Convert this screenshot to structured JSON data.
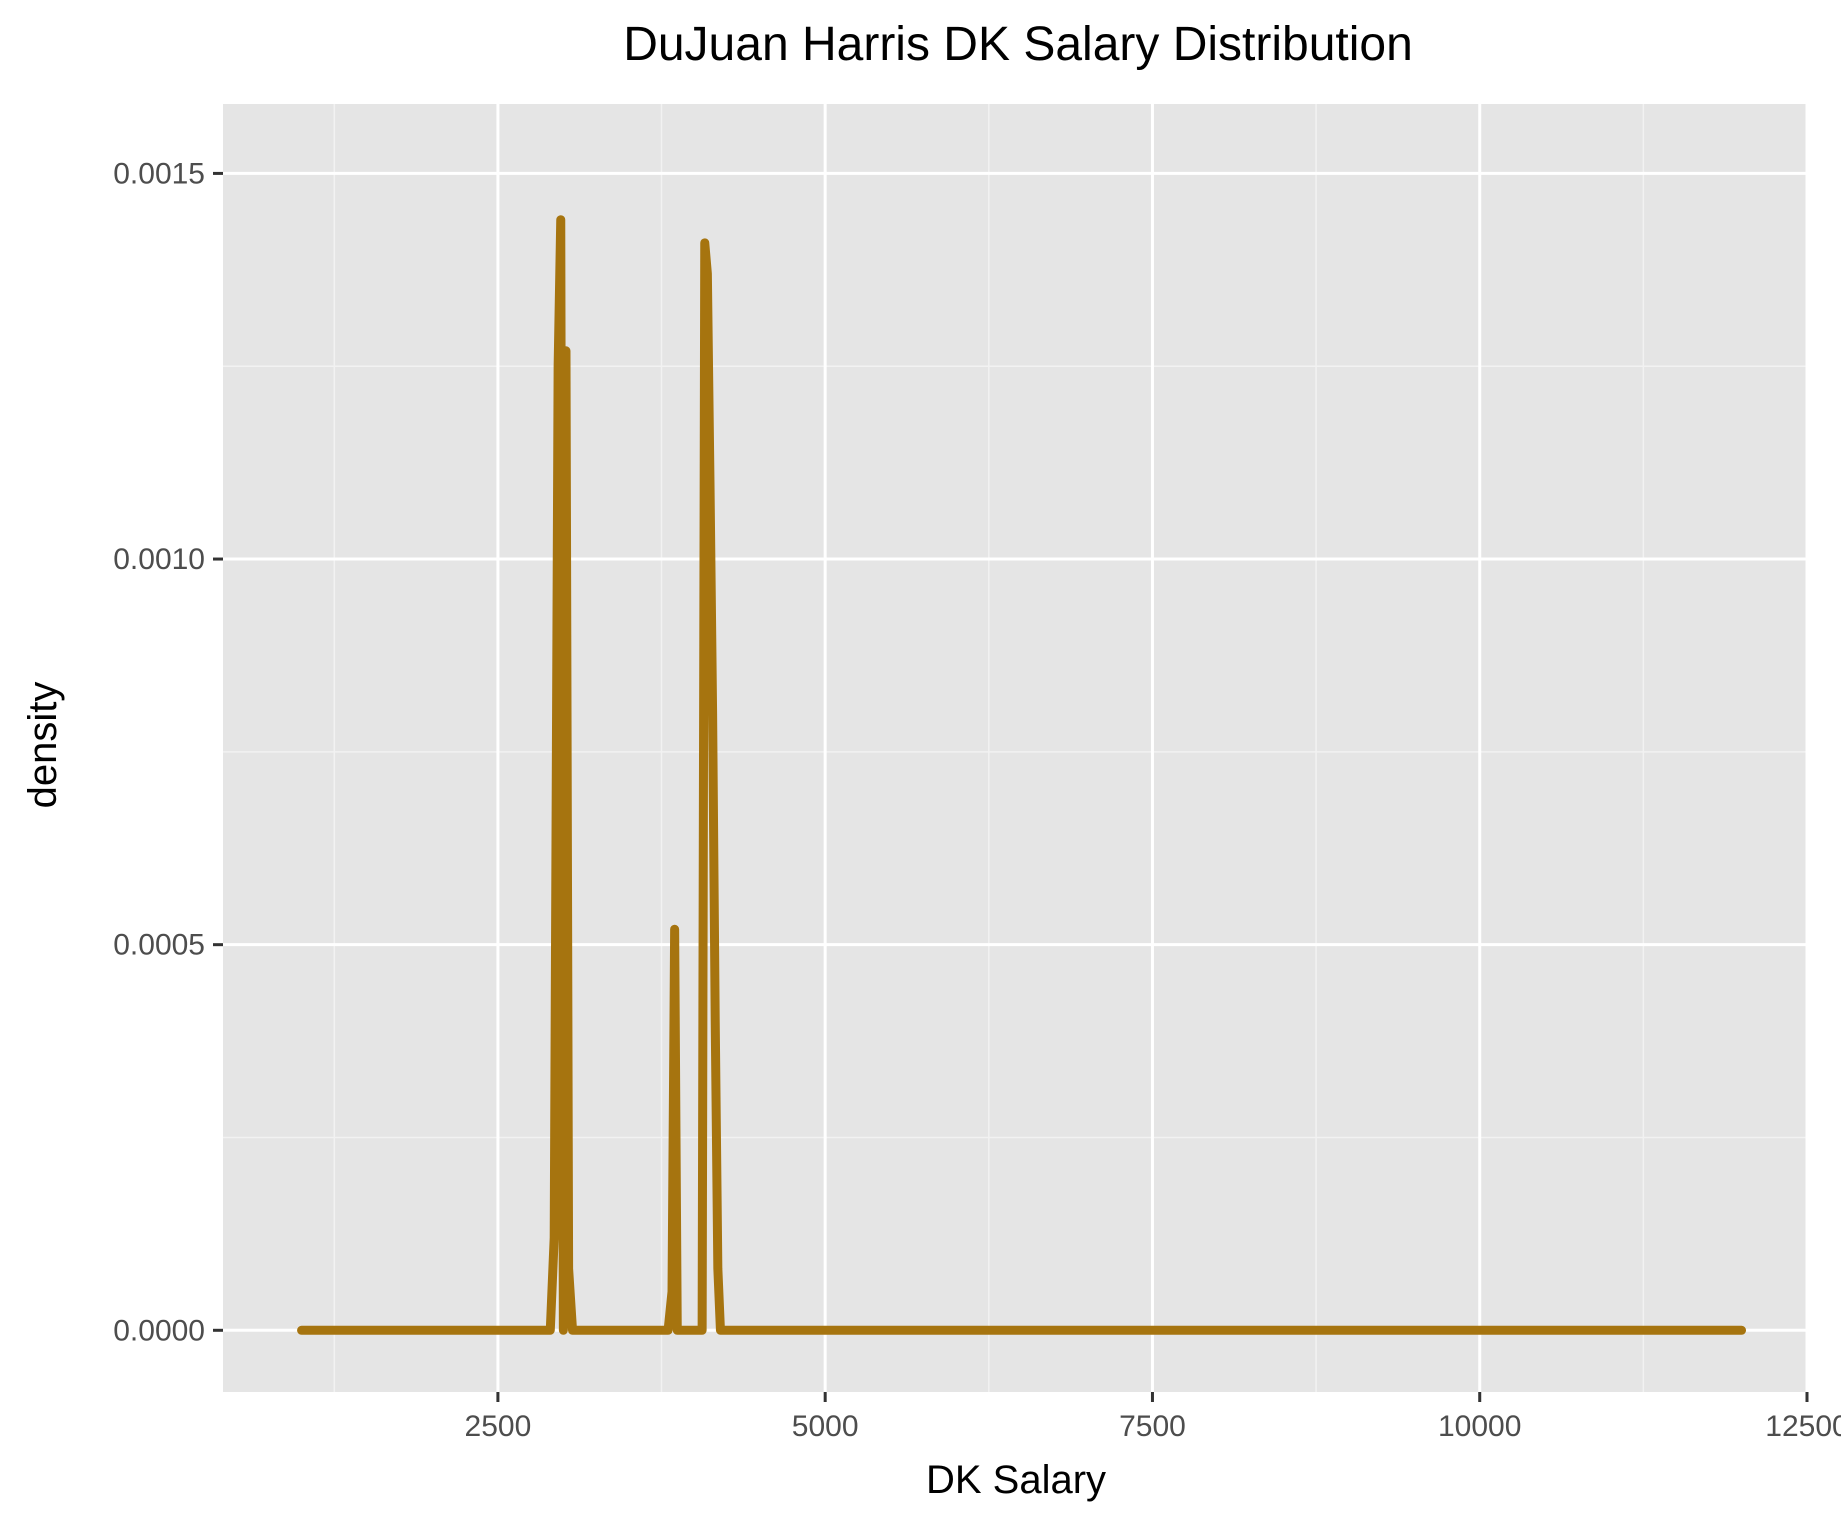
{
  "chart_data": {
    "type": "line",
    "title": "DuJuan Harris DK Salary Distribution",
    "xlabel": "DK Salary",
    "ylabel": "density",
    "xlim": [
      400,
      12500
    ],
    "ylim": [
      -8e-05,
      0.00159
    ],
    "x_ticks": [
      2500,
      5000,
      7500,
      10000,
      12500
    ],
    "x_tick_labels": [
      "2500",
      "5000",
      "7500",
      "10000",
      "12500"
    ],
    "y_ticks": [
      0.0,
      0.0005,
      0.001,
      0.0015
    ],
    "y_tick_labels": [
      "0.0000",
      "0.0005",
      "0.0010",
      "0.0015"
    ],
    "grid": true,
    "legend": "none",
    "colors": {
      "line": "#A6740F",
      "panel_background": "#E5E5E5",
      "grid_major": "#FFFFFF",
      "grid_minor": "#F2F2F2"
    },
    "series": [
      {
        "x": [
          1000,
          2900,
          2930,
          2960,
          2980,
          3000,
          3020,
          3040,
          3070,
          3100,
          3800,
          3830,
          3850,
          3870,
          4060,
          4080,
          4100,
          4120,
          4140,
          4160,
          4180,
          4200,
          12000
        ],
        "y": [
          0.0,
          0.0,
          0.00012,
          0.00125,
          0.00144,
          0.0,
          0.00127,
          8e-05,
          0.0,
          0.0,
          0.0,
          5e-05,
          0.00052,
          0.0,
          0.0,
          0.00141,
          0.00137,
          0.0011,
          0.0008,
          0.0004,
          8e-05,
          0.0,
          0.0
        ]
      }
    ]
  }
}
